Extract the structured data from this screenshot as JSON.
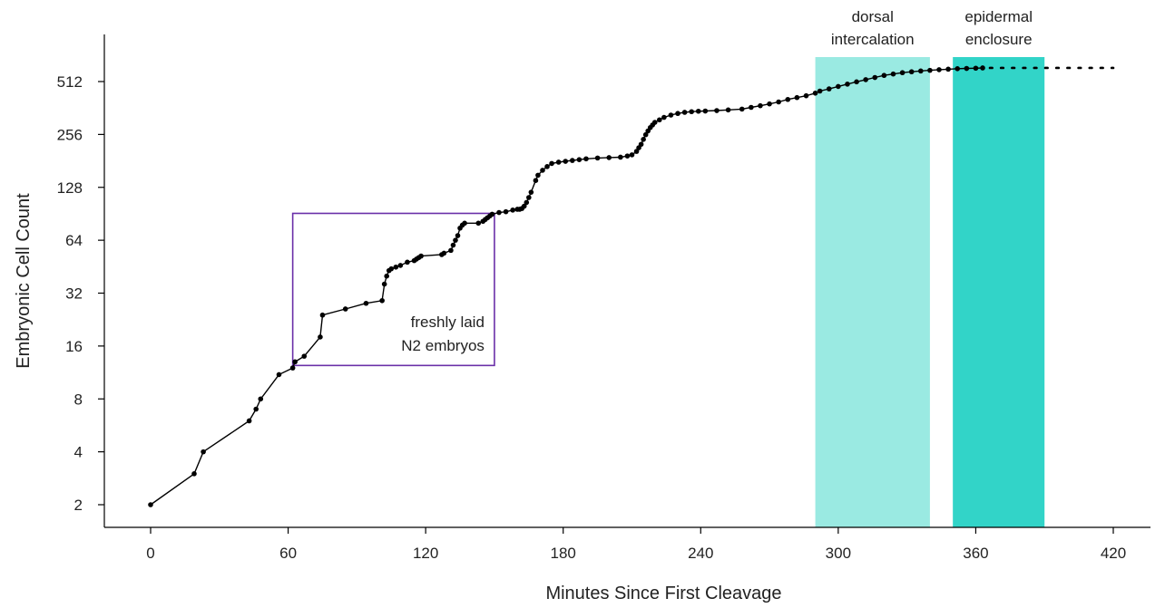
{
  "chart_data": {
    "type": "line",
    "title": "",
    "xlabel": "Minutes Since First Cleavage",
    "ylabel": "Embryonic Cell Count",
    "xlim": [
      -20,
      440
    ],
    "ylim_log2": [
      0.55,
      9.83
    ],
    "y_scale": "log2",
    "grid": false,
    "legend": "none",
    "x_ticks": [
      0,
      60,
      120,
      180,
      240,
      300,
      360,
      420
    ],
    "y_ticks": [
      2,
      4,
      8,
      16,
      32,
      64,
      128,
      256,
      512
    ],
    "line_color": "#000000",
    "series": [
      {
        "x": [
          0,
          19,
          23,
          43,
          46,
          48,
          56,
          62,
          63,
          67,
          74,
          75,
          85,
          94,
          101,
          102,
          103,
          104,
          105,
          107,
          109,
          112,
          115,
          116,
          117,
          118,
          127,
          128,
          131,
          132,
          133,
          134,
          135,
          136,
          137,
          143,
          145,
          146,
          147,
          148,
          149,
          152,
          155,
          158,
          160,
          161,
          162,
          163,
          164,
          165,
          166,
          168,
          169,
          171,
          173,
          175,
          178,
          181,
          184,
          187,
          190,
          195,
          200,
          205,
          208,
          210,
          212,
          213,
          214,
          215,
          216,
          217,
          218,
          219,
          220,
          222,
          224,
          227,
          230,
          233,
          236,
          239,
          242,
          247,
          252,
          258,
          262,
          266,
          270,
          274,
          278,
          282,
          286,
          290,
          292,
          296,
          300,
          304,
          308,
          312,
          316,
          320,
          324,
          328,
          332,
          336,
          340,
          344,
          348,
          352,
          356,
          360,
          363
        ],
        "y": [
          2,
          3,
          4,
          6,
          7,
          8,
          11,
          12,
          13,
          14,
          18,
          24,
          26,
          28,
          29,
          36,
          40,
          43,
          44,
          45,
          46,
          48,
          49,
          50,
          51,
          52,
          53,
          54,
          56,
          60,
          64,
          68,
          75,
          78,
          80,
          80,
          82,
          84,
          86,
          88,
          90,
          92,
          93,
          95,
          96,
          96,
          97,
          100,
          105,
          112,
          120,
          140,
          150,
          160,
          168,
          175,
          178,
          180,
          182,
          184,
          186,
          188,
          189,
          190,
          193,
          196,
          205,
          215,
          225,
          240,
          255,
          268,
          280,
          290,
          300,
          310,
          320,
          330,
          337,
          342,
          345,
          347,
          348,
          350,
          353,
          357,
          365,
          373,
          382,
          392,
          405,
          415,
          425,
          440,
          452,
          465,
          480,
          495,
          510,
          525,
          540,
          555,
          565,
          575,
          582,
          588,
          593,
          598,
          602,
          606,
          608,
          610,
          612
        ]
      }
    ],
    "dotted_extension": {
      "from_x": 363,
      "to_x": 420,
      "y": 612
    },
    "bands": [
      {
        "label": "dorsal\nintercalation",
        "line1": "dorsal",
        "line2": "intercalation",
        "x_start": 290,
        "x_end": 340,
        "color": "#9AEAE2"
      },
      {
        "label": "epidermal\nenclosure",
        "line1": "epidermal",
        "line2": "enclosure",
        "x_start": 350,
        "x_end": 390,
        "color": "#32D4C8"
      }
    ],
    "inset_box": {
      "label": "freshly laid\nN2 embryos",
      "line1": "freshly laid",
      "line2": "N2 embryos",
      "x_range": [
        62,
        150
      ],
      "y_range": [
        12.4,
        91
      ],
      "color": "#6A2FA8"
    }
  }
}
